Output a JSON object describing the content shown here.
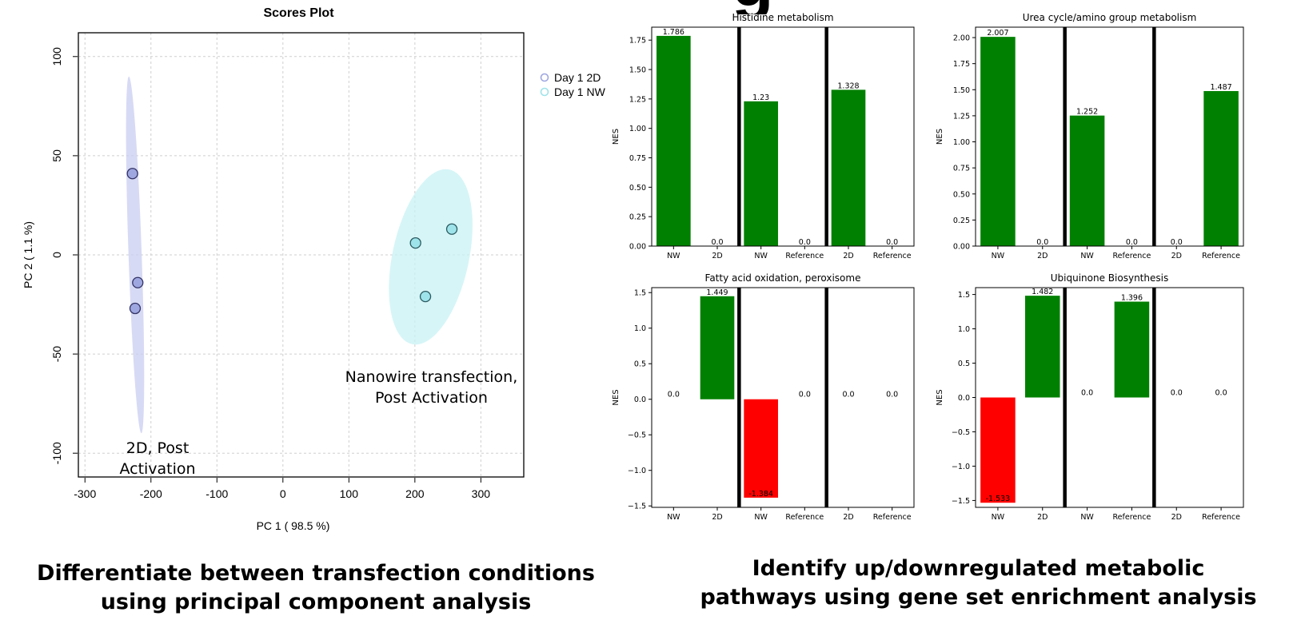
{
  "header_fragment": "g",
  "pca": {
    "chart_data": {
      "type": "scatter",
      "title": "Scores Plot",
      "xlabel": "PC 1 ( 98.5 %)",
      "ylabel": "PC 2 ( 1.1 %)",
      "xlim": [
        -310,
        365
      ],
      "ylim": [
        -112,
        112
      ],
      "xticks": [
        -300,
        -200,
        -100,
        0,
        100,
        200,
        300
      ],
      "yticks": [
        -100,
        -50,
        0,
        50,
        100
      ],
      "grid": true,
      "legend_position": "right",
      "series": [
        {
          "name": "Day 1 2D",
          "color": "#9fa7e0",
          "edge": "#333366",
          "points": [
            [
              -228,
              41
            ],
            [
              -220,
              -14
            ],
            [
              -224,
              -27
            ]
          ],
          "ellipse": {
            "cx": -224,
            "cy": 0,
            "rx": 10,
            "ry": 90,
            "fill": "#c9cdf0"
          }
        },
        {
          "name": "Day 1 NW",
          "color": "#9fe3ea",
          "edge": "#2a5a60",
          "points": [
            [
              201,
              6
            ],
            [
              256,
              13
            ],
            [
              216,
              -21
            ]
          ],
          "ellipse": {
            "cx": 224,
            "cy": -1,
            "rx": 58,
            "ry": 45,
            "fill": "#c8f1f4"
          }
        }
      ],
      "annotations": [
        {
          "lines": [
            "Nanowire transfection,",
            "Post Activation"
          ],
          "x": 225,
          "y": -64
        },
        {
          "lines": [
            "2D, Post",
            "Activation"
          ],
          "x": -190,
          "y": -100
        }
      ]
    }
  },
  "gsea": {
    "chart_data": [
      {
        "type": "bar",
        "title": "Histidine metabolism",
        "ylabel": "NES",
        "categories": [
          "NW",
          "2D",
          "NW",
          "Reference",
          "2D",
          "Reference"
        ],
        "values": [
          1.786,
          0.0,
          1.23,
          0.0,
          1.328,
          0.0
        ],
        "labels": [
          "1.786",
          "0.0",
          "1.23",
          "0.0",
          "1.328",
          "0.0"
        ],
        "ylim": [
          0,
          1.86
        ],
        "yticks": [
          0,
          0.25,
          0.5,
          0.75,
          1.0,
          1.25,
          1.5,
          1.75
        ],
        "ytick_labels": [
          "0.00",
          "0.25",
          "0.50",
          "0.75",
          "1.00",
          "1.25",
          "1.50",
          "1.75"
        ]
      },
      {
        "type": "bar",
        "title": "Urea cycle/amino group metabolism",
        "ylabel": "NES",
        "categories": [
          "NW",
          "2D",
          "NW",
          "Reference",
          "2D",
          "Reference"
        ],
        "values": [
          2.007,
          0.0,
          1.252,
          0.0,
          0.0,
          1.487
        ],
        "labels": [
          "2.007",
          "0.0",
          "1.252",
          "0.0",
          "0.0",
          "1.487"
        ],
        "ylim": [
          0,
          2.1
        ],
        "yticks": [
          0,
          0.25,
          0.5,
          0.75,
          1.0,
          1.25,
          1.5,
          1.75,
          2.0
        ],
        "ytick_labels": [
          "0.00",
          "0.25",
          "0.50",
          "0.75",
          "1.00",
          "1.25",
          "1.50",
          "1.75",
          "2.00"
        ]
      },
      {
        "type": "bar",
        "title": "Fatty acid oxidation, peroxisome",
        "ylabel": "NES",
        "categories": [
          "NW",
          "2D",
          "NW",
          "Reference",
          "2D",
          "Reference"
        ],
        "values": [
          0.0,
          1.449,
          -1.384,
          0.0,
          0.0,
          0.0
        ],
        "labels": [
          "0.0",
          "1.449",
          "-1.384",
          "0.0",
          "0.0",
          "0.0"
        ],
        "ylim": [
          -1.52,
          1.57
        ],
        "yticks": [
          -1.5,
          -1.0,
          -0.5,
          0.0,
          0.5,
          1.0,
          1.5
        ],
        "ytick_labels": [
          "−1.5",
          "−1.0",
          "−0.5",
          "0.0",
          "0.5",
          "1.0",
          "1.5"
        ]
      },
      {
        "type": "bar",
        "title": "Ubiquinone Biosynthesis",
        "ylabel": "NES",
        "categories": [
          "NW",
          "2D",
          "NW",
          "Reference",
          "2D",
          "Reference"
        ],
        "values": [
          -1.533,
          1.482,
          0.0,
          1.396,
          0.0,
          0.0
        ],
        "labels": [
          "-1.533",
          "1.482",
          "0.0",
          "1.396",
          "0.0",
          "0.0"
        ],
        "ylim": [
          -1.6,
          1.6
        ],
        "yticks": [
          -1.5,
          -1.0,
          -0.5,
          0.0,
          0.5,
          1.0,
          1.5
        ],
        "ytick_labels": [
          "−1.5",
          "−1.0",
          "−0.5",
          "0.0",
          "0.5",
          "1.0",
          "1.5"
        ]
      }
    ],
    "colors": {
      "positive": "#008000",
      "negative": "#ff0000",
      "divider": "#000000"
    }
  },
  "captions": {
    "left": [
      "Differentiate between transfection conditions",
      "using principal component analysis"
    ],
    "right": [
      "Identify up/downregulated metabolic",
      "pathways using gene set enrichment analysis"
    ]
  }
}
